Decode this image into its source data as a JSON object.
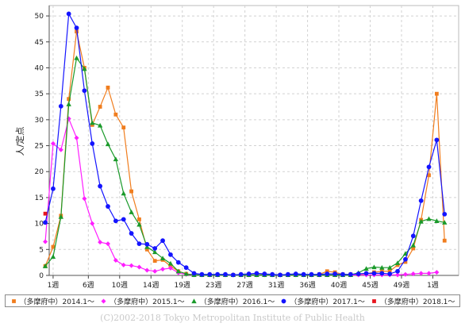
{
  "chart_data": {
    "type": "line",
    "ylabel": "人/定点",
    "ylim": [
      0,
      52
    ],
    "yticks": [
      0,
      5,
      10,
      15,
      20,
      25,
      30,
      35,
      40,
      45,
      50
    ],
    "xlim": [
      0.5,
      52.8
    ],
    "xticks": [
      {
        "x": 1,
        "label": "1週"
      },
      {
        "x": 5.5,
        "label": "6週"
      },
      {
        "x": 9.5,
        "label": "10週"
      },
      {
        "x": 13.5,
        "label": "14週"
      },
      {
        "x": 17.5,
        "label": "19週"
      },
      {
        "x": 21.5,
        "label": "23週"
      },
      {
        "x": 25.5,
        "label": "27週"
      },
      {
        "x": 29.5,
        "label": "31週"
      },
      {
        "x": 33.5,
        "label": "36週"
      },
      {
        "x": 37.5,
        "label": "40週"
      },
      {
        "x": 41.5,
        "label": "45週"
      },
      {
        "x": 45.5,
        "label": "49週"
      },
      {
        "x": 49.5,
        "label": "1週"
      }
    ],
    "grid": true,
    "legend_position": "bottom",
    "series": [
      {
        "name": "（多摩府中）2014.1～",
        "color": "#f07d1e",
        "marker": "square",
        "x": [
          0,
          1,
          2,
          3,
          4,
          5,
          6,
          7,
          8,
          9,
          10,
          11,
          12,
          13,
          14,
          15,
          16,
          17,
          18,
          19,
          20,
          21,
          22,
          23,
          24,
          25,
          26,
          27,
          28,
          29,
          30,
          31,
          32,
          33,
          34,
          35,
          36,
          37,
          38,
          39,
          40,
          41,
          42,
          43,
          44,
          45,
          46,
          47,
          48,
          49,
          50,
          51
        ],
        "values": [
          1.8,
          5.5,
          11.5,
          34.0,
          47.0,
          40.0,
          29.0,
          32.5,
          36.2,
          31.0,
          28.5,
          16.2,
          10.8,
          5.0,
          2.8,
          3.0,
          1.8,
          0.8,
          0.3,
          0.1,
          0.1,
          0.1,
          0.1,
          0.1,
          0.1,
          0.1,
          0.1,
          0.1,
          0.2,
          0.1,
          0.1,
          0.1,
          0.1,
          0.1,
          0.1,
          0.2,
          0.8,
          0.6,
          0.2,
          0.2,
          0.2,
          0.3,
          0.6,
          0.8,
          0.8,
          2.0,
          2.6,
          5.2,
          10.7,
          19.3,
          35.0,
          6.7
        ]
      },
      {
        "name": "（多摩府中）2015.1～",
        "color": "#ff1eff",
        "marker": "diamond",
        "x": [
          0,
          1,
          2,
          3,
          4,
          5,
          6,
          7,
          8,
          9,
          10,
          11,
          12,
          13,
          14,
          15,
          16,
          17,
          18,
          19,
          20,
          21,
          22,
          23,
          24,
          25,
          26,
          27,
          28,
          29,
          30,
          31,
          32,
          33,
          34,
          35,
          36,
          37,
          38,
          39,
          40,
          41,
          42,
          43,
          44,
          45,
          46,
          47,
          48,
          49,
          50
        ],
        "values": [
          6.5,
          25.4,
          24.2,
          30.2,
          26.5,
          14.8,
          10.0,
          6.4,
          6.1,
          2.9,
          2.0,
          1.9,
          1.6,
          1.0,
          0.8,
          1.2,
          1.4,
          0.5,
          0.2,
          0.1,
          0.1,
          0.1,
          0.1,
          0.1,
          0.1,
          0.1,
          0.1,
          0.1,
          0.1,
          0.1,
          0.1,
          0.1,
          0.1,
          0.1,
          0.1,
          0.1,
          0.1,
          0.1,
          0.1,
          0.1,
          0.1,
          0.1,
          0.1,
          0.1,
          0.1,
          0.1,
          0.2,
          0.3,
          0.4,
          0.4,
          0.6
        ]
      },
      {
        "name": "（多摩府中）2016.1～",
        "color": "#1a9a2a",
        "marker": "triangle",
        "x": [
          0,
          1,
          2,
          3,
          4,
          5,
          6,
          7,
          8,
          9,
          10,
          11,
          12,
          13,
          14,
          15,
          16,
          17,
          18,
          19,
          20,
          21,
          22,
          23,
          24,
          25,
          26,
          27,
          28,
          29,
          30,
          31,
          32,
          33,
          34,
          35,
          36,
          37,
          38,
          39,
          40,
          41,
          42,
          43,
          44,
          45,
          46,
          47,
          48,
          49,
          50,
          51
        ],
        "values": [
          1.8,
          3.6,
          11.3,
          33.0,
          41.9,
          39.8,
          29.4,
          28.9,
          25.3,
          22.4,
          15.8,
          12.2,
          9.8,
          5.5,
          4.5,
          3.3,
          2.3,
          0.8,
          0.3,
          0.1,
          0.1,
          0.1,
          0.1,
          0.1,
          0.1,
          0.1,
          0.1,
          0.1,
          0.1,
          0.1,
          0.1,
          0.1,
          0.1,
          0.1,
          0.1,
          0.1,
          0.1,
          0.1,
          0.1,
          0.1,
          0.5,
          1.3,
          1.6,
          1.5,
          1.5,
          2.4,
          4.2,
          5.8,
          10.4,
          10.9,
          10.5,
          10.2
        ]
      },
      {
        "name": "（多摩府中）2017.1～",
        "color": "#1414ff",
        "marker": "circle",
        "x": [
          0,
          1,
          2,
          3,
          4,
          5,
          6,
          7,
          8,
          9,
          10,
          11,
          12,
          13,
          14,
          15,
          16,
          17,
          18,
          19,
          20,
          21,
          22,
          23,
          24,
          25,
          26,
          27,
          28,
          29,
          30,
          31,
          32,
          33,
          34,
          35,
          36,
          37,
          38,
          39,
          40,
          41,
          42,
          43,
          44,
          45,
          46,
          47,
          48,
          49,
          50,
          51
        ],
        "values": [
          10.2,
          16.7,
          32.6,
          50.4,
          47.7,
          35.6,
          25.4,
          17.2,
          13.3,
          10.5,
          10.8,
          8.1,
          6.1,
          6.0,
          5.2,
          6.7,
          4.0,
          2.5,
          1.5,
          0.4,
          0.2,
          0.2,
          0.2,
          0.2,
          0.1,
          0.2,
          0.3,
          0.4,
          0.3,
          0.2,
          0.1,
          0.2,
          0.3,
          0.2,
          0.2,
          0.2,
          0.3,
          0.3,
          0.2,
          0.2,
          0.3,
          0.4,
          0.4,
          0.4,
          0.3,
          0.8,
          3.1,
          7.6,
          14.4,
          20.9,
          26.1,
          11.8
        ]
      },
      {
        "name": "（多摩府中）2018.1～",
        "color": "#e8151e",
        "marker": "square",
        "x": [
          0
        ],
        "values": [
          11.9
        ]
      }
    ]
  },
  "footer": {
    "copyright": "(C)2002-2018 Tokyo Metropolitan Institute of Public Health"
  }
}
